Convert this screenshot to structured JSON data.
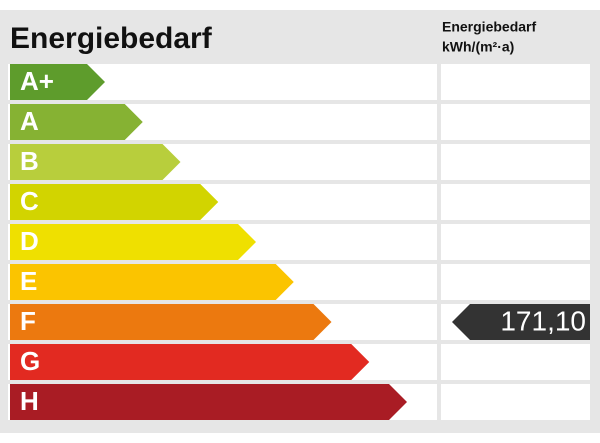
{
  "header": {
    "title": "Energiebedarf",
    "column_title": "Energiebedarf",
    "column_unit": "kWh/(m²·a)"
  },
  "classes": [
    {
      "label": "A+",
      "color": "#5e9c2c"
    },
    {
      "label": "A",
      "color": "#86b233"
    },
    {
      "label": "B",
      "color": "#b8ce3c"
    },
    {
      "label": "C",
      "color": "#d2d400"
    },
    {
      "label": "D",
      "color": "#efe000"
    },
    {
      "label": "E",
      "color": "#fbc400"
    },
    {
      "label": "F",
      "color": "#ec790f",
      "value": "171,10"
    },
    {
      "label": "G",
      "color": "#e22a21"
    },
    {
      "label": "H",
      "color": "#a91c24"
    }
  ]
}
